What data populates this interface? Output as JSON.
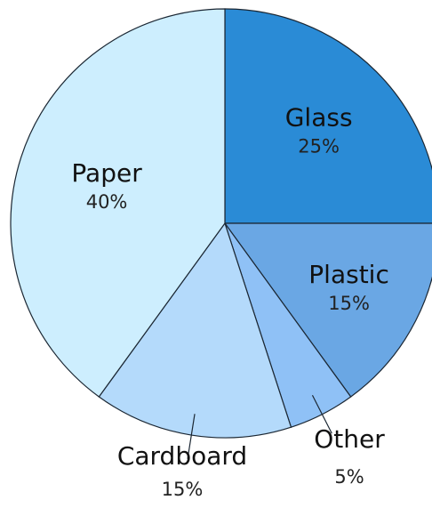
{
  "chart_data": {
    "type": "pie",
    "title": "",
    "start_angle_deg": 0,
    "direction": "clockwise",
    "slices": [
      {
        "label": "Glass",
        "value": 25,
        "pct_label": "25%",
        "color": "#2a8bd6",
        "label_position": "inside"
      },
      {
        "label": "Plastic",
        "value": 15,
        "pct_label": "15%",
        "color": "#6aa7e4",
        "label_position": "inside"
      },
      {
        "label": "Other",
        "value": 5,
        "pct_label": "5%",
        "color": "#8fc1f6",
        "label_position": "outside"
      },
      {
        "label": "Cardboard",
        "value": 15,
        "pct_label": "15%",
        "color": "#b4dafb",
        "label_position": "outside"
      },
      {
        "label": "Paper",
        "value": 40,
        "pct_label": "40%",
        "color": "#cdeefe",
        "label_position": "inside"
      }
    ]
  }
}
